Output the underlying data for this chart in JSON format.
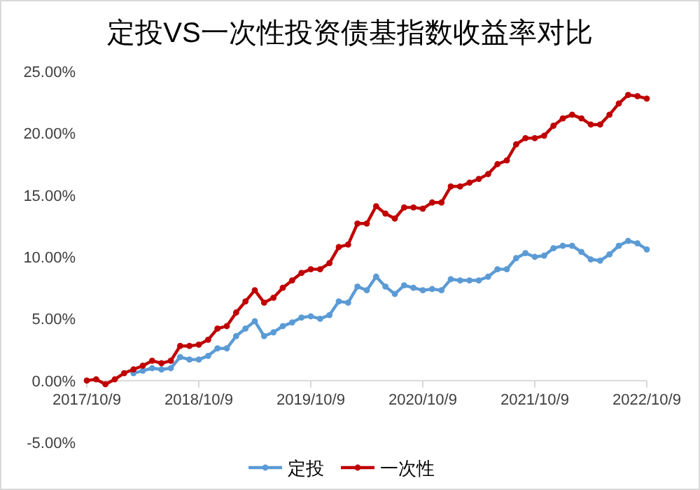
{
  "chart_data": {
    "type": "line",
    "title": "定投VS一次性投资债基指数收益率对比",
    "categories": [
      "2017/10/9",
      null,
      null,
      null,
      null,
      null,
      null,
      null,
      null,
      null,
      null,
      null,
      "2018/10/9",
      null,
      null,
      null,
      null,
      null,
      null,
      null,
      null,
      null,
      null,
      null,
      "2019/10/9",
      null,
      null,
      null,
      null,
      null,
      null,
      null,
      null,
      null,
      null,
      null,
      "2020/10/9",
      null,
      null,
      null,
      null,
      null,
      null,
      null,
      null,
      null,
      null,
      null,
      "2021/10/9",
      null,
      null,
      null,
      null,
      null,
      null,
      null,
      null,
      null,
      null,
      null,
      "2022/10/9"
    ],
    "series": [
      {
        "name": "定投",
        "color": "#5b9bd5",
        "values": [
          null,
          null,
          null,
          null,
          null,
          0.6,
          0.8,
          1.0,
          0.9,
          1.0,
          1.9,
          1.7,
          1.7,
          2.0,
          2.6,
          2.6,
          3.6,
          4.2,
          4.8,
          3.6,
          3.9,
          4.4,
          4.7,
          5.1,
          5.2,
          5.0,
          5.3,
          6.4,
          6.3,
          7.6,
          7.3,
          8.4,
          7.6,
          7.0,
          7.7,
          7.5,
          7.3,
          7.4,
          7.3,
          8.2,
          8.1,
          8.1,
          8.1,
          8.4,
          9.0,
          9.0,
          9.9,
          10.3,
          10.0,
          10.1,
          10.7,
          10.9,
          10.9,
          10.4,
          9.8,
          9.7,
          10.2,
          10.9,
          11.3,
          11.1,
          10.6
        ]
      },
      {
        "name": "一次性",
        "color": "#c00000",
        "values": [
          0,
          0.1,
          -0.3,
          0.1,
          0.6,
          0.9,
          1.2,
          1.6,
          1.4,
          1.6,
          2.8,
          2.8,
          2.9,
          3.3,
          4.2,
          4.4,
          5.5,
          6.4,
          7.3,
          6.3,
          6.7,
          7.5,
          8.1,
          8.7,
          9.0,
          9.0,
          9.5,
          10.8,
          11.0,
          12.7,
          12.7,
          14.1,
          13.5,
          13.1,
          14.0,
          14.0,
          13.9,
          14.4,
          14.4,
          15.7,
          15.7,
          16.0,
          16.3,
          16.7,
          17.5,
          17.8,
          19.1,
          19.6,
          19.6,
          19.8,
          20.6,
          21.2,
          21.5,
          21.2,
          20.7,
          20.7,
          21.5,
          22.4,
          23.1,
          23.0,
          22.8
        ]
      }
    ],
    "ylim": [
      -5,
      25
    ],
    "yticks": [
      {
        "value": -5,
        "label": "-5.00%"
      },
      {
        "value": 0,
        "label": "0.00%"
      },
      {
        "value": 5,
        "label": "5.00%"
      },
      {
        "value": 10,
        "label": "10.00%"
      },
      {
        "value": 15,
        "label": "15.00%"
      },
      {
        "value": 20,
        "label": "20.00%"
      },
      {
        "value": 25,
        "label": "25.00%"
      }
    ],
    "grid": false,
    "legend": "bottom",
    "marker": "circle"
  }
}
